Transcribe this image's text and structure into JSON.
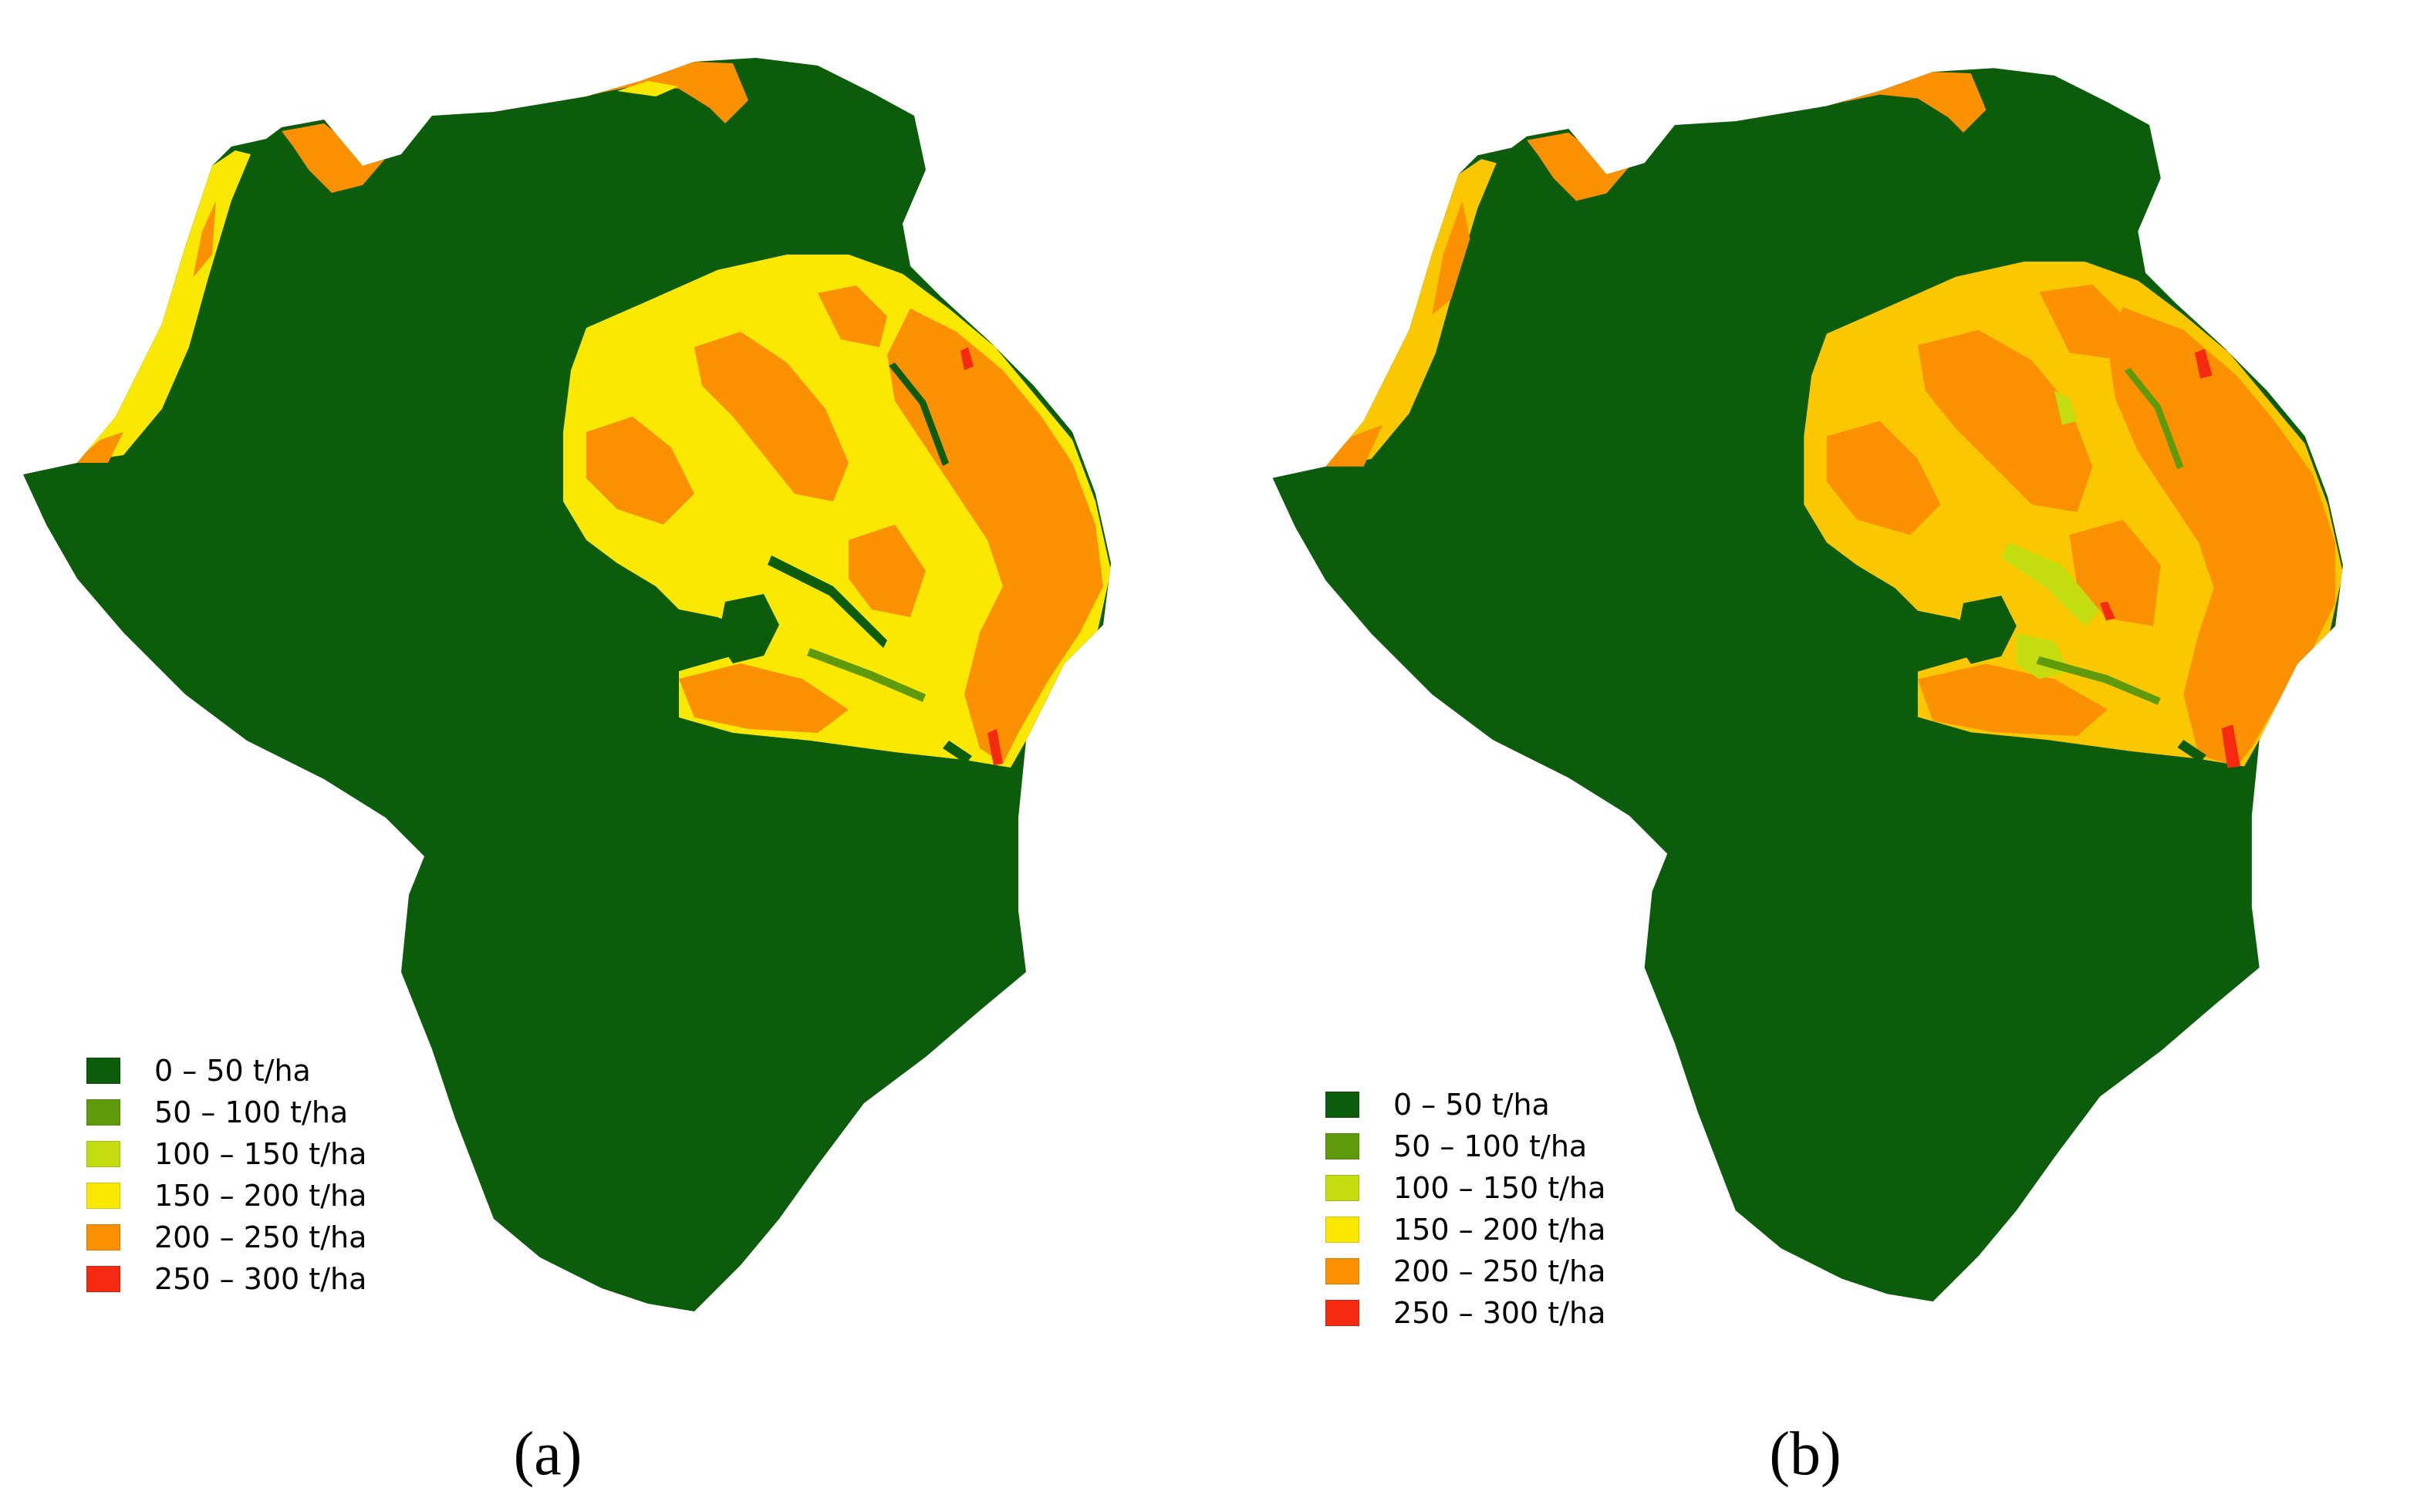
{
  "colors": {
    "class_0_50": "#0b5c0b",
    "class_50_100": "#5e9a0a",
    "class_100_150": "#c4dd10",
    "class_150_200": "#fbe800",
    "class_200_250": "#fb9000",
    "class_250_300": "#f52a10"
  },
  "panels": [
    {
      "caption": "(a)",
      "legend": [
        {
          "label": "0 –  50 t/ha",
          "color": "#0b5c0b"
        },
        {
          "label": "50 – 100 t/ha",
          "color": "#5e9a0a"
        },
        {
          "label": "100 – 150 t/ha",
          "color": "#c4dd10"
        },
        {
          "label": "150 – 200 t/ha",
          "color": "#fbe800"
        },
        {
          "label": "200 – 250 t/ha",
          "color": "#fb9000"
        },
        {
          "label": "250 – 300 t/ha",
          "color": "#f52a10"
        }
      ]
    },
    {
      "caption": "(b)",
      "legend": [
        {
          "label": "0 –  50 t/ha",
          "color": "#0b5c0b"
        },
        {
          "label": "50 – 100 t/ha",
          "color": "#5e9a0a"
        },
        {
          "label": "100 – 150 t/ha",
          "color": "#c4dd10"
        },
        {
          "label": "150 – 200 t/ha",
          "color": "#fbe800"
        },
        {
          "label": "200 – 250 t/ha",
          "color": "#fb9000"
        },
        {
          "label": "250 – 300 t/ha",
          "color": "#f52a10"
        }
      ]
    }
  ]
}
